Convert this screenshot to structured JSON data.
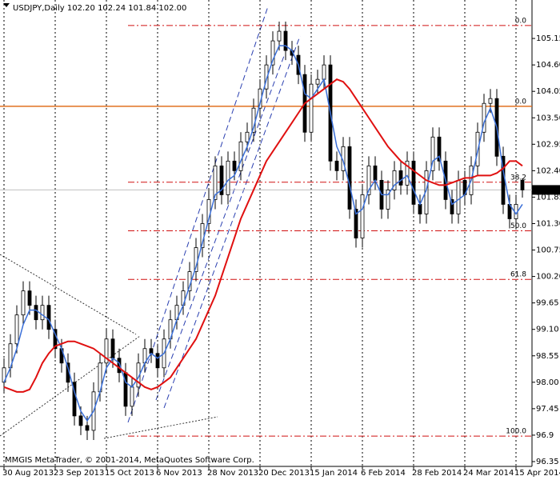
{
  "chart_data": {
    "type": "candlestick",
    "title": "USDJPY,Daily  102.20 102.24 101.84 102.00",
    "footer": "MMGIS MetaTrader, © 2001-2014, MetaQuotes Software Corp.",
    "categories": [
      "30 Aug 2013",
      null,
      null,
      null,
      null,
      null,
      null,
      null,
      "23 Sep 2013",
      null,
      null,
      null,
      null,
      null,
      null,
      null,
      "15 Oct 2013",
      null,
      null,
      null,
      null,
      null,
      null,
      null,
      "6 Nov 2013",
      null,
      null,
      null,
      null,
      null,
      null,
      null,
      "28 Nov 2013",
      null,
      null,
      null,
      null,
      null,
      null,
      null,
      "20 Dec 2013",
      null,
      null,
      null,
      null,
      null,
      null,
      null,
      "15 Jan 2014",
      null,
      null,
      null,
      null,
      null,
      null,
      null,
      "6 Feb 2014",
      null,
      null,
      null,
      null,
      null,
      null,
      null,
      "28 Feb 2014",
      null,
      null,
      null,
      null,
      null,
      null,
      null,
      "24 Mar 2014",
      null,
      null,
      null,
      null,
      null,
      null,
      null,
      "15 Apr 2014",
      null
    ],
    "open": [
      98.0,
      98.3,
      98.8,
      99.4,
      99.9,
      99.6,
      99.3,
      99.6,
      99.1,
      98.7,
      98.4,
      98.0,
      97.3,
      97.1,
      97.0,
      97.8,
      98.4,
      98.9,
      98.5,
      98.2,
      97.5,
      97.9,
      98.4,
      98.7,
      98.6,
      98.3,
      98.9,
      99.3,
      99.6,
      99.9,
      100.3,
      100.8,
      101.3,
      101.8,
      102.5,
      101.9,
      102.6,
      102.4,
      103.0,
      103.2,
      103.7,
      104.1,
      104.6,
      105.1,
      105.3,
      104.9,
      104.8,
      104.4,
      103.2,
      104.2,
      104.3,
      104.6,
      102.6,
      102.4,
      102.9,
      101.6,
      101.0,
      101.9,
      102.5,
      102.2,
      101.6,
      102.0,
      102.4,
      102.1,
      102.6,
      101.7,
      101.5,
      102.4,
      103.1,
      102.6,
      101.8,
      101.5,
      102.2,
      101.9,
      102.5,
      103.2,
      103.8,
      103.9,
      102.7,
      101.7,
      101.4,
      102.2
    ],
    "high": [
      98.5,
      99.0,
      99.6,
      100.1,
      100.1,
      99.8,
      99.8,
      99.8,
      99.3,
      98.9,
      98.6,
      98.2,
      97.5,
      97.3,
      98.0,
      98.6,
      99.1,
      99.1,
      98.7,
      98.4,
      98.1,
      98.6,
      98.9,
      98.9,
      98.8,
      99.1,
      99.5,
      99.8,
      100.1,
      100.5,
      101.0,
      101.5,
      102.0,
      102.7,
      102.7,
      102.8,
      102.8,
      103.2,
      103.4,
      103.9,
      104.3,
      104.8,
      105.3,
      105.5,
      105.5,
      105.1,
      105.0,
      104.6,
      104.4,
      104.5,
      104.8,
      104.8,
      102.8,
      103.1,
      103.1,
      101.8,
      102.1,
      102.7,
      102.7,
      102.4,
      102.2,
      102.6,
      102.6,
      102.8,
      102.8,
      101.9,
      102.6,
      103.3,
      103.3,
      102.8,
      102.0,
      102.4,
      102.4,
      102.7,
      103.4,
      104.0,
      104.1,
      104.1,
      102.9,
      101.9,
      101.9,
      102.24
    ],
    "low": [
      97.8,
      98.1,
      98.6,
      99.2,
      99.4,
      99.1,
      99.1,
      98.9,
      98.5,
      98.2,
      97.8,
      97.1,
      96.9,
      96.8,
      96.8,
      97.6,
      98.2,
      98.3,
      98.0,
      97.3,
      97.3,
      97.7,
      98.2,
      98.4,
      98.1,
      98.1,
      98.7,
      99.1,
      99.4,
      99.7,
      100.1,
      100.6,
      101.1,
      101.6,
      101.7,
      101.7,
      102.2,
      102.2,
      102.8,
      103.0,
      103.5,
      103.9,
      104.4,
      104.9,
      104.7,
      104.6,
      104.2,
      103.0,
      103.0,
      104.0,
      104.1,
      102.4,
      102.2,
      102.2,
      101.4,
      100.8,
      100.8,
      101.7,
      102.0,
      101.4,
      101.4,
      101.8,
      101.9,
      101.9,
      101.5,
      101.3,
      101.3,
      102.2,
      102.4,
      101.6,
      101.3,
      101.3,
      101.7,
      101.7,
      102.3,
      103.0,
      103.6,
      102.5,
      101.5,
      101.2,
      101.2,
      101.84
    ],
    "close": [
      98.3,
      98.8,
      99.4,
      99.9,
      99.6,
      99.3,
      99.6,
      99.1,
      98.7,
      98.4,
      98.0,
      97.3,
      97.1,
      97.0,
      97.8,
      98.4,
      98.9,
      98.5,
      98.2,
      97.5,
      97.9,
      98.4,
      98.7,
      98.6,
      98.3,
      98.9,
      99.3,
      99.6,
      99.9,
      100.3,
      100.8,
      101.3,
      101.8,
      102.5,
      101.9,
      102.6,
      102.4,
      103.0,
      103.2,
      103.7,
      104.1,
      104.6,
      105.1,
      105.3,
      104.9,
      104.8,
      104.4,
      103.2,
      104.2,
      104.3,
      104.6,
      102.6,
      102.4,
      102.9,
      101.6,
      101.0,
      101.9,
      102.5,
      102.2,
      101.6,
      102.0,
      102.4,
      102.1,
      102.6,
      101.7,
      101.5,
      102.4,
      103.1,
      102.6,
      101.8,
      101.5,
      102.2,
      101.9,
      102.5,
      103.2,
      103.8,
      103.9,
      102.7,
      101.7,
      101.4,
      101.7,
      102.0
    ],
    "up_color": "#ffffff",
    "down_color": "#000000",
    "moving_averages": [
      {
        "color": "#3a6fd8",
        "values": [
          98.0,
          98.3,
          98.7,
          99.2,
          99.5,
          99.5,
          99.4,
          99.3,
          99.0,
          98.7,
          98.3,
          97.8,
          97.4,
          97.2,
          97.4,
          97.8,
          98.3,
          98.5,
          98.4,
          98.0,
          97.9,
          98.1,
          98.4,
          98.6,
          98.5,
          98.6,
          98.9,
          99.3,
          99.6,
          100.0,
          100.4,
          100.9,
          101.4,
          101.9,
          102.0,
          102.2,
          102.3,
          102.6,
          102.9,
          103.3,
          103.8,
          104.3,
          104.7,
          105.0,
          105.0,
          104.9,
          104.6,
          104.0,
          103.9,
          104.1,
          104.3,
          103.6,
          102.9,
          102.6,
          102.1,
          101.5,
          101.6,
          102.0,
          102.2,
          101.9,
          101.9,
          102.1,
          102.2,
          102.3,
          102.0,
          101.7,
          102.0,
          102.6,
          102.7,
          102.2,
          101.7,
          101.8,
          101.9,
          102.2,
          102.8,
          103.4,
          103.7,
          103.3,
          102.4,
          101.7,
          101.5,
          101.7
        ]
      },
      {
        "color": "#e01010",
        "values": [
          97.9,
          97.85,
          97.8,
          97.8,
          97.85,
          98.1,
          98.4,
          98.6,
          98.75,
          98.8,
          98.85,
          98.85,
          98.8,
          98.75,
          98.7,
          98.6,
          98.5,
          98.4,
          98.3,
          98.2,
          98.1,
          98.0,
          97.9,
          97.85,
          97.9,
          98.0,
          98.1,
          98.3,
          98.5,
          98.7,
          98.9,
          99.2,
          99.5,
          99.8,
          100.2,
          100.6,
          101.0,
          101.4,
          101.7,
          102.0,
          102.3,
          102.6,
          102.8,
          103.0,
          103.2,
          103.4,
          103.6,
          103.8,
          103.9,
          104.0,
          104.1,
          104.2,
          104.3,
          104.25,
          104.1,
          103.9,
          103.7,
          103.5,
          103.3,
          103.1,
          102.9,
          102.75,
          102.6,
          102.5,
          102.4,
          102.3,
          102.2,
          102.15,
          102.1,
          102.1,
          102.15,
          102.2,
          102.25,
          102.25,
          102.3,
          102.3,
          102.3,
          102.35,
          102.45,
          102.6,
          102.6,
          102.5
        ]
      }
    ],
    "ylim": [
      96.25,
      105.95
    ],
    "yticks": [
      96.35,
      96.9,
      {
        "value": 97.45,
        "label": "97.45"
      },
      {
        "value": 98,
        "label": "98.00"
      },
      98.55,
      {
        "value": 99.1,
        "label": "99.10"
      },
      99.65,
      {
        "value": 100.2,
        "label": "100.20"
      },
      100.75,
      {
        "value": 101.3,
        "label": "101.30"
      },
      101.85,
      {
        "value": 102.4,
        "label": "102.40"
      },
      102.95,
      {
        "value": 103.5,
        "label": "103.50"
      },
      {
        "value": 104.05,
        "label": "104.05"
      },
      {
        "value": 104.6,
        "label": "104.60"
      },
      105.15
    ],
    "fib_color": "#d01010",
    "fib_levels": [
      {
        "label": "0.0",
        "value": 105.42
      },
      {
        "label": "38.2",
        "value": 102.16
      },
      {
        "label": "50.0",
        "value": 101.15
      },
      {
        "label": "61.8",
        "value": 100.14
      },
      {
        "label": "100.0",
        "value": 96.88
      }
    ],
    "level_line": {
      "label": "0.0",
      "value": 103.74,
      "color": "#e07020"
    },
    "current_price": {
      "value": 102,
      "label": "102.00"
    }
  }
}
